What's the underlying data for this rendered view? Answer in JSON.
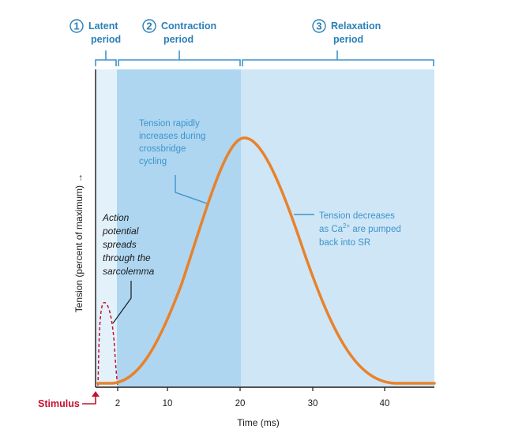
{
  "phases": [
    {
      "number": "1",
      "line1": "Latent",
      "line2": "period"
    },
    {
      "number": "2",
      "line1": "Contraction",
      "line2": "period"
    },
    {
      "number": "3",
      "line1": "Relaxation",
      "line2": "period"
    }
  ],
  "annotations": {
    "contraction": [
      "Tension rapidly",
      "increases during",
      "crossbridge",
      "cycling"
    ],
    "relaxation_line1": "Tension decreases",
    "relaxation_line2_pre": "as Ca",
    "relaxation_line2_sup": "2+",
    "relaxation_line2_post": " are pumped",
    "relaxation_line3": "back into SR",
    "action_potential": [
      "Action",
      "potential",
      "spreads",
      "through the",
      "sarcolemma"
    ]
  },
  "axes": {
    "x_ticks": [
      "2",
      "10",
      "20",
      "30",
      "40"
    ],
    "x_label": "Time (ms)",
    "y_label": "Tension (percent of maximum) →"
  },
  "stimulus_label": "Stimulus",
  "colors": {
    "latent_fill": "#e3f1fb",
    "contraction_fill": "#aed6f1",
    "relaxation_fill": "#cfe6f7",
    "curve": "#e8822a",
    "brackets": "#3d94cc",
    "stimulus": "#c8102e"
  },
  "chart_data": {
    "type": "line",
    "x_unit": "ms",
    "y_unit": "percent of maximum",
    "curve_peak_ms": 20,
    "phase_boundaries_ms": [
      0,
      2,
      20,
      47
    ]
  }
}
